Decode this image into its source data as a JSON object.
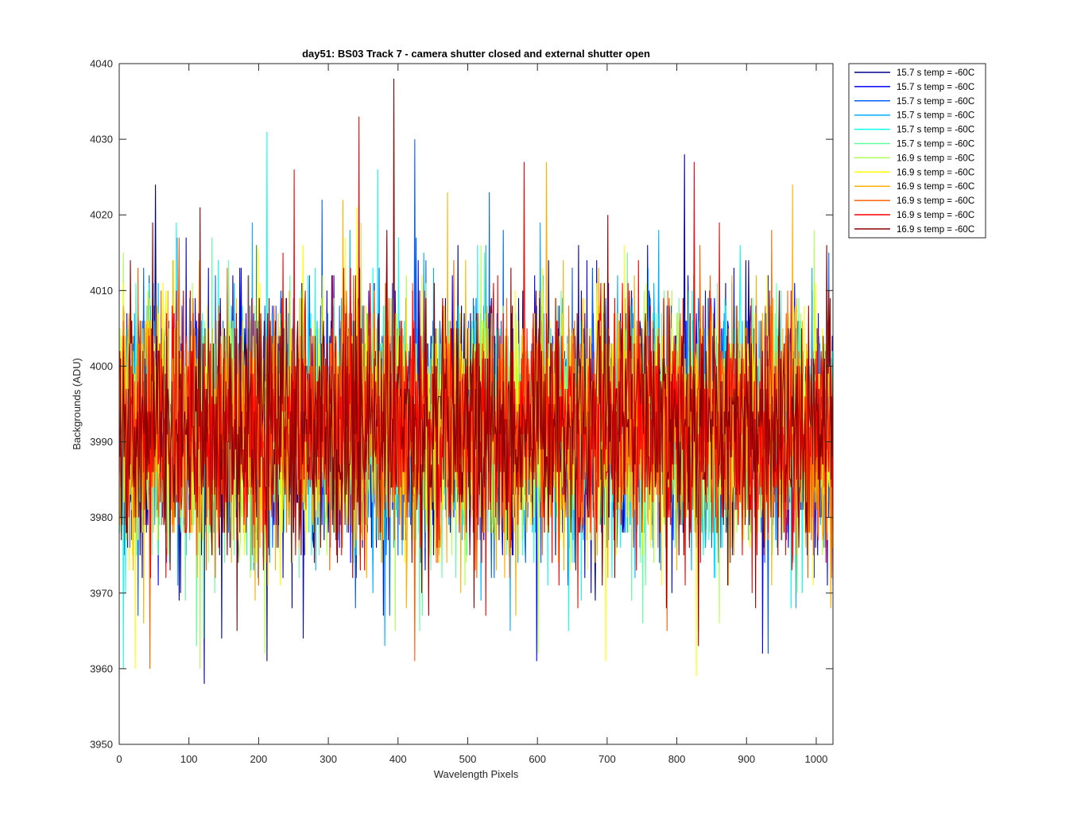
{
  "chart_data": {
    "type": "line",
    "title": "day51: BS03  Track 7 - camera shutter closed and external shutter open",
    "xlabel": "Wavelength Pixels",
    "ylabel": "Backgrounds (ADU)",
    "xlim": [
      0,
      1024
    ],
    "ylim": [
      3950,
      4040
    ],
    "xticks": [
      0,
      100,
      200,
      300,
      400,
      500,
      600,
      700,
      800,
      900,
      1000
    ],
    "yticks": [
      3950,
      3960,
      3970,
      3980,
      3990,
      4000,
      4010,
      4020,
      4030,
      4040
    ],
    "grid": false,
    "legend_position": "outside-top-right",
    "series_mean": 3992,
    "series_spread": 8,
    "series": [
      {
        "name": "15.7 s temp = -60C",
        "color": "#00008f",
        "peaks": [
          [
            51,
            4024
          ],
          [
            121,
            3958
          ],
          [
            211,
            3961
          ],
          [
            810,
            4028
          ]
        ]
      },
      {
        "name": "15.7 s temp = -60C",
        "color": "#0000ff",
        "peaks": [
          [
            95,
            4017
          ],
          [
            263,
            3964
          ],
          [
            598,
            3961
          ],
          [
            922,
            3962
          ]
        ]
      },
      {
        "name": "15.7 s temp = -60C",
        "color": "#0060ff",
        "peaks": [
          [
            290,
            4022
          ],
          [
            423,
            4030
          ],
          [
            530,
            4023
          ],
          [
            930,
            3962
          ]
        ]
      },
      {
        "name": "15.7 s temp = -60C",
        "color": "#00afff",
        "peaks": [
          [
            330,
            4018
          ],
          [
            380,
            3963
          ],
          [
            560,
            3965
          ],
          [
            970,
            3968
          ]
        ]
      },
      {
        "name": "15.7 s temp = -60C",
        "color": "#10ffef",
        "peaks": [
          [
            211,
            4031
          ],
          [
            370,
            4026
          ],
          [
            5,
            3960
          ],
          [
            890,
            4016
          ]
        ]
      },
      {
        "name": "15.7 s temp = -60C",
        "color": "#60ff9f",
        "peaks": [
          [
            110,
            3963
          ],
          [
            430,
            3965
          ],
          [
            750,
            3966
          ],
          [
            830,
            3965
          ]
        ]
      },
      {
        "name": "16.9 s temp = -60C",
        "color": "#afff50",
        "peaks": [
          [
            115,
            3960
          ],
          [
            208,
            3962
          ],
          [
            600,
            3962
          ],
          [
            860,
            3966
          ]
        ]
      },
      {
        "name": "16.9 s temp = -60C",
        "color": "#ffff00",
        "peaks": [
          [
            22,
            3960
          ],
          [
            340,
            4021
          ],
          [
            697,
            3961
          ],
          [
            827,
            3959
          ]
        ]
      },
      {
        "name": "16.9 s temp = -60C",
        "color": "#ffaf00",
        "peaks": [
          [
            320,
            4022
          ],
          [
            470,
            4023
          ],
          [
            612,
            4027
          ],
          [
            965,
            4024
          ]
        ]
      },
      {
        "name": "16.9 s temp = -60C",
        "color": "#ff6000",
        "peaks": [
          [
            43,
            3960
          ],
          [
            423,
            3961
          ],
          [
            785,
            3965
          ],
          [
            420,
            4011
          ]
        ]
      },
      {
        "name": "16.9 s temp = -60C",
        "color": "#ff0000",
        "peaks": [
          [
            250,
            4026
          ],
          [
            343,
            4033
          ],
          [
            580,
            4027
          ],
          [
            824,
            4027
          ]
        ]
      },
      {
        "name": "16.9 s temp = -60C",
        "color": "#8f0000",
        "peaks": [
          [
            115,
            4021
          ],
          [
            393,
            4038
          ],
          [
            700,
            4020
          ],
          [
            830,
            3963
          ]
        ]
      }
    ]
  }
}
